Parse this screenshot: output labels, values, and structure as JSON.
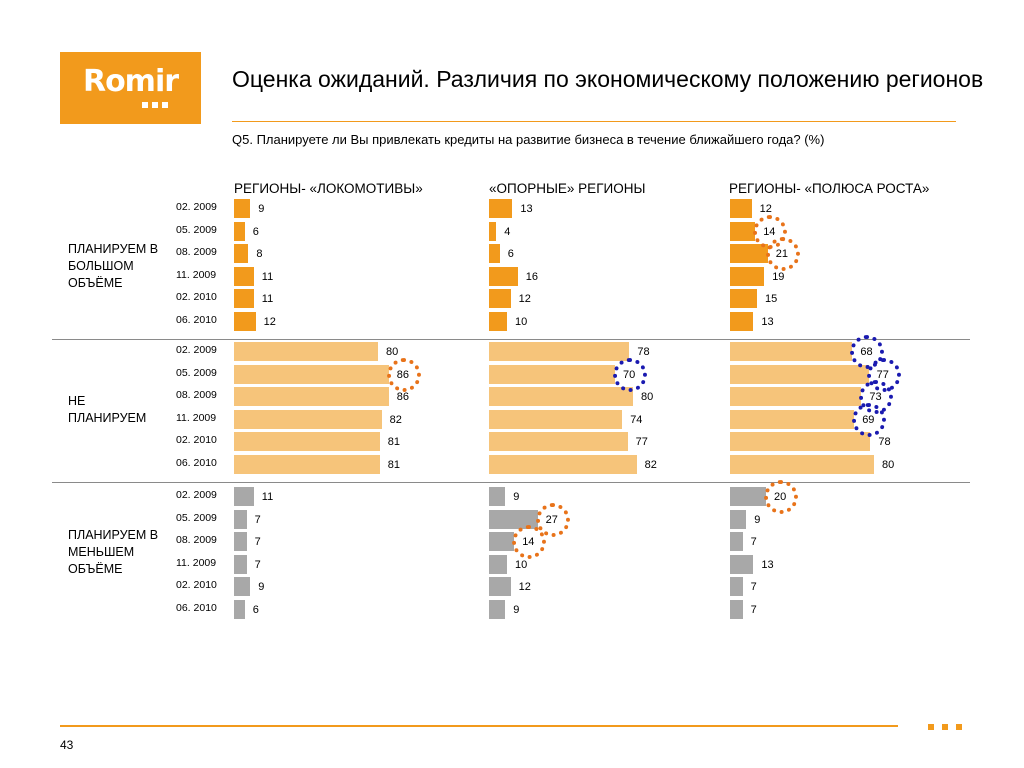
{
  "brand": {
    "logo_text": "Romir",
    "accent": "#f29a1c"
  },
  "slide": {
    "title": "Оценка ожиданий. Различия по экономическому положению регионов",
    "question": "Q5. Планируете ли Вы привлекать кредиты на развитие бизнеса в течение ближайшего года? (%)",
    "page_number": "43"
  },
  "chart_data": {
    "type": "bar",
    "orientation": "horizontal",
    "periods": [
      "02. 2009",
      "05. 2009",
      "08. 2009",
      "11. 2009",
      "02. 2010",
      "06. 2010"
    ],
    "region_groups": [
      "РЕГИОНЫ- «ЛОКОМОТИВЫ»",
      "«ОПОРНЫЕ» РЕГИОНЫ",
      "РЕГИОНЫ- «ПОЛЮСА РОСТА»"
    ],
    "answers": [
      {
        "label": "ПЛАНИРУЕМ В БОЛЬШОМ ОБЪЁМЕ",
        "color": "#f29a1c",
        "values": [
          [
            9,
            6,
            8,
            11,
            11,
            12
          ],
          [
            13,
            4,
            6,
            16,
            12,
            10
          ],
          [
            12,
            14,
            21,
            19,
            15,
            13
          ]
        ]
      },
      {
        "label": "НЕ ПЛАНИРУЕМ",
        "color": "#f6c47a",
        "values": [
          [
            80,
            86,
            86,
            82,
            81,
            81
          ],
          [
            78,
            70,
            80,
            74,
            77,
            82
          ],
          [
            68,
            77,
            73,
            69,
            78,
            80
          ]
        ]
      },
      {
        "label": "ПЛАНИРУЕМ В МЕНЬШЕМ ОБЪЁМЕ",
        "color": "#a8a8a8",
        "values": [
          [
            11,
            7,
            7,
            7,
            9,
            6
          ],
          [
            9,
            27,
            14,
            10,
            12,
            9
          ],
          [
            20,
            9,
            7,
            13,
            7,
            7
          ]
        ]
      }
    ],
    "highlights": [
      {
        "answer": 0,
        "group": 2,
        "period": 1,
        "color": "#e8731a"
      },
      {
        "answer": 0,
        "group": 2,
        "period": 2,
        "color": "#e8731a"
      },
      {
        "answer": 1,
        "group": 0,
        "period": 1,
        "color": "#e8731a"
      },
      {
        "answer": 1,
        "group": 1,
        "period": 1,
        "color": "#1a1ab0"
      },
      {
        "answer": 1,
        "group": 2,
        "period": 0,
        "color": "#1a1ab0"
      },
      {
        "answer": 1,
        "group": 2,
        "period": 1,
        "color": "#1a1ab0"
      },
      {
        "answer": 1,
        "group": 2,
        "period": 2,
        "color": "#1a1ab0"
      },
      {
        "answer": 1,
        "group": 2,
        "period": 3,
        "color": "#1a1ab0"
      },
      {
        "answer": 2,
        "group": 1,
        "period": 1,
        "color": "#e8731a"
      },
      {
        "answer": 2,
        "group": 1,
        "period": 2,
        "color": "#e8731a"
      },
      {
        "answer": 2,
        "group": 2,
        "period": 0,
        "color": "#e8731a"
      }
    ]
  }
}
